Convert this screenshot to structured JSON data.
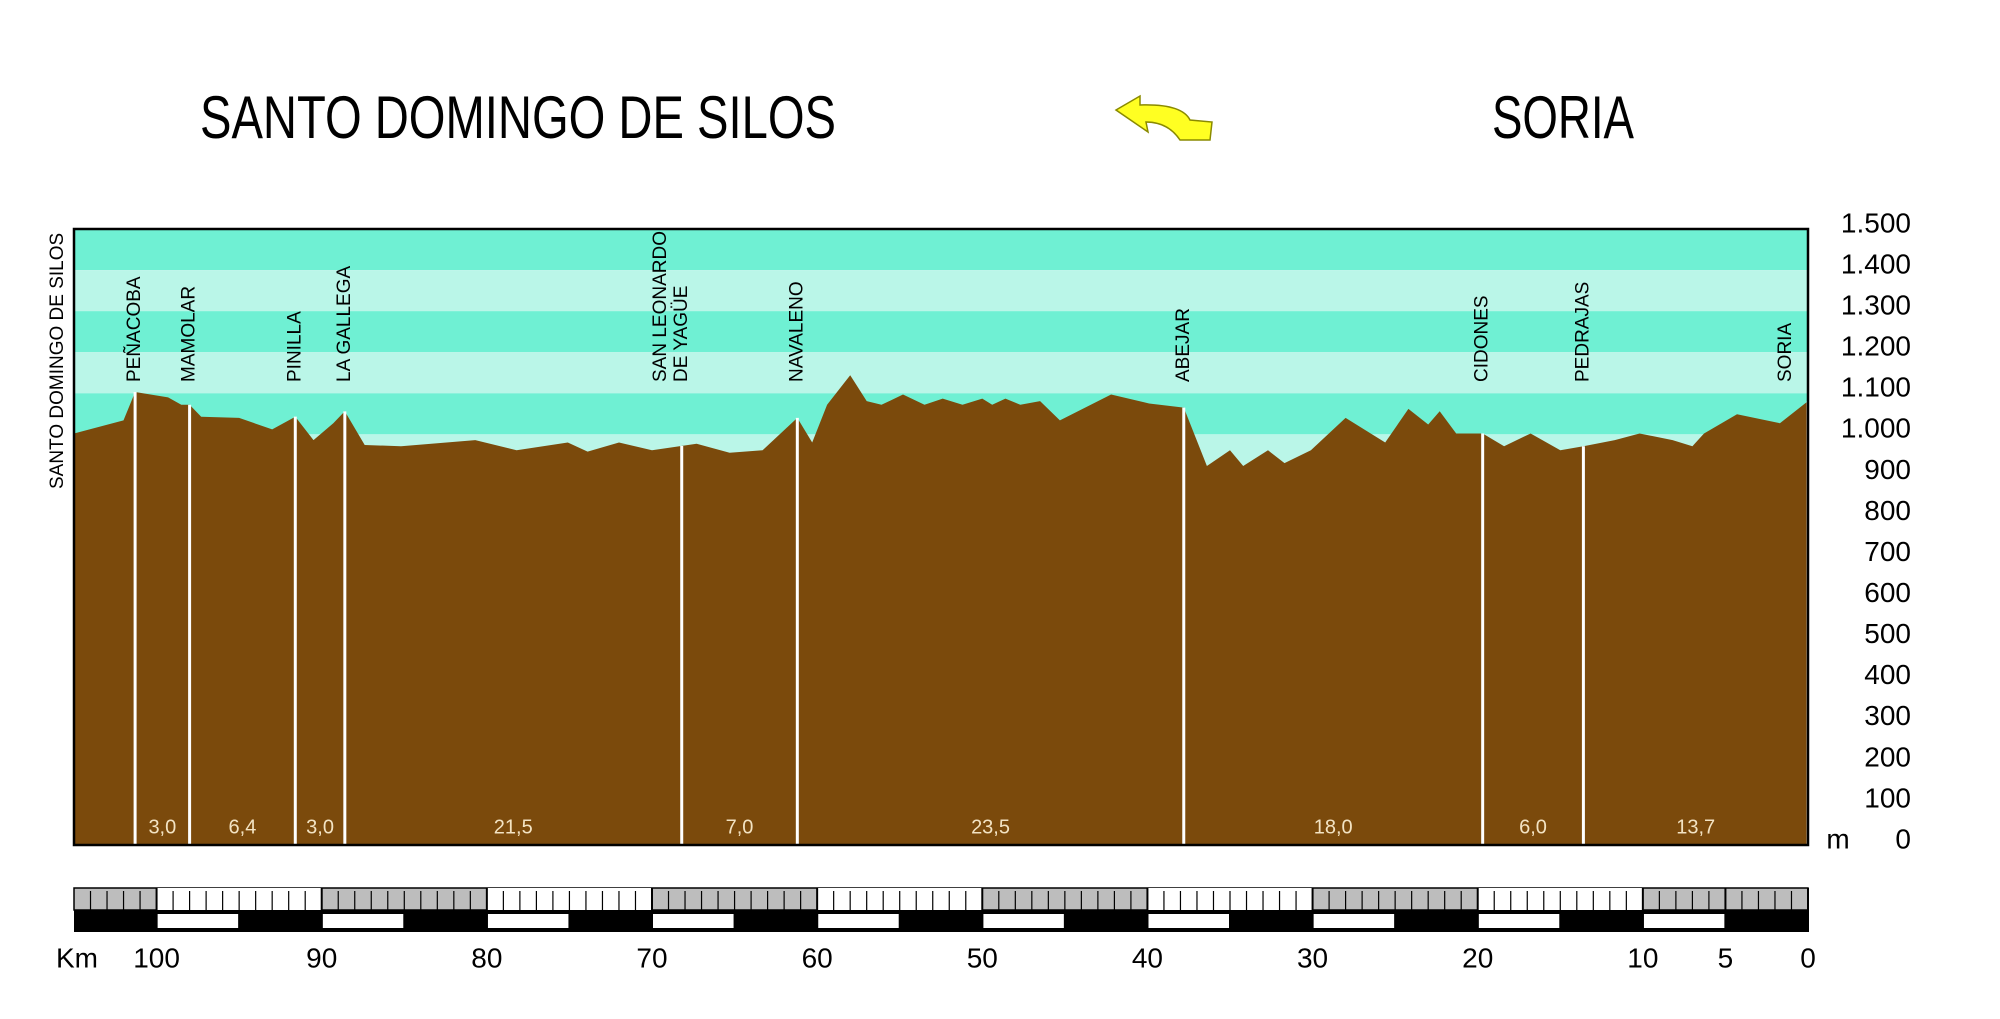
{
  "title_left": "SANTO DOMINGO DE SILOS",
  "title_right": "SORIA",
  "chart_data": {
    "type": "area",
    "start_label": "SANTO DOMINGO DE SILOS",
    "x": [
      105.0,
      102.0,
      101.3,
      99.3,
      98.5,
      98.0,
      97.3,
      95.0,
      93.0,
      91.6,
      90.5,
      89.3,
      88.6,
      87.4,
      85.2,
      80.7,
      78.2,
      75.1,
      73.9,
      72.0,
      70.0,
      67.3,
      65.3,
      63.3,
      61.2,
      60.3,
      59.4,
      58.0,
      57.0,
      56.1,
      54.8,
      53.5,
      52.4,
      51.2,
      50.0,
      49.4,
      48.6,
      47.7,
      46.5,
      45.3,
      42.2,
      39.9,
      37.8,
      36.4,
      35.0,
      34.2,
      32.7,
      31.7,
      30.1,
      28.0,
      25.6,
      24.2,
      23.0,
      22.3,
      21.3,
      19.7,
      18.4,
      16.8,
      15.0,
      13.6,
      11.7,
      10.2,
      8.2,
      7.0,
      6.3,
      4.3,
      1.7,
      0.0
    ],
    "values": [
      1002,
      1034,
      1103,
      1090,
      1072,
      1072,
      1043,
      1040,
      1012,
      1043,
      986,
      1027,
      1056,
      974,
      971,
      986,
      961,
      980,
      958,
      980,
      961,
      977,
      955,
      961,
      1040,
      980,
      1072,
      1144,
      1081,
      1072,
      1097,
      1072,
      1087,
      1072,
      1087,
      1072,
      1087,
      1072,
      1081,
      1034,
      1097,
      1075,
      1065,
      923,
      961,
      923,
      961,
      930,
      961,
      1040,
      980,
      1062,
      1024,
      1056,
      1002,
      1002,
      971,
      1002,
      961,
      971,
      986,
      1002,
      986,
      971,
      1002,
      1049,
      1027,
      1081
    ],
    "color": "#7b4a0c",
    "xlim": [
      105,
      0
    ],
    "xticks": [
      100,
      90,
      80,
      70,
      60,
      50,
      40,
      30,
      20,
      10,
      5,
      0
    ],
    "x_label": "Km",
    "ylim": [
      0,
      1500
    ],
    "yticks": [
      0,
      100,
      200,
      300,
      400,
      500,
      600,
      700,
      800,
      900,
      {
        "value": 1000,
        "label": "1.000"
      },
      {
        "value": 1100,
        "label": "1.100"
      },
      {
        "value": 1200,
        "label": "1.200"
      },
      {
        "value": 1300,
        "label": "1.300"
      },
      {
        "value": 1400,
        "label": "1.400"
      },
      {
        "value": 1500,
        "label": "1.500"
      }
    ],
    "y_label": "m",
    "band_colors": [
      "#6ff0d3",
      "#baf6e8"
    ],
    "towns": [
      {
        "lines": [
          "PEÑACOBA"
        ],
        "km": 101.3
      },
      {
        "lines": [
          "MAMOLAR"
        ],
        "km": 98.0
      },
      {
        "lines": [
          "PINILLA"
        ],
        "km": 91.6
      },
      {
        "lines": [
          "LA GALLEGA"
        ],
        "km": 88.6
      },
      {
        "lines": [
          "SAN LEONARDO",
          "DE YAGÜE"
        ],
        "km": 68.2
      },
      {
        "lines": [
          "NAVALENO"
        ],
        "km": 61.2
      },
      {
        "lines": [
          "ABEJAR"
        ],
        "km": 37.8
      },
      {
        "lines": [
          "CIDONES"
        ],
        "km": 19.7
      },
      {
        "lines": [
          "PEDRAJAS"
        ],
        "km": 13.6
      },
      {
        "lines": [
          "SORIA"
        ],
        "km": 0.0
      }
    ],
    "stages": {
      "values": [
        3.0,
        6.4,
        3.0,
        21.5,
        7.0,
        23.5,
        18.0,
        6.0,
        13.7
      ],
      "value_labels": [
        "3,0",
        "6,4",
        "3,0",
        "21,5",
        "7,0",
        "23,5",
        "18,0",
        "6,0",
        "13,7"
      ]
    }
  }
}
